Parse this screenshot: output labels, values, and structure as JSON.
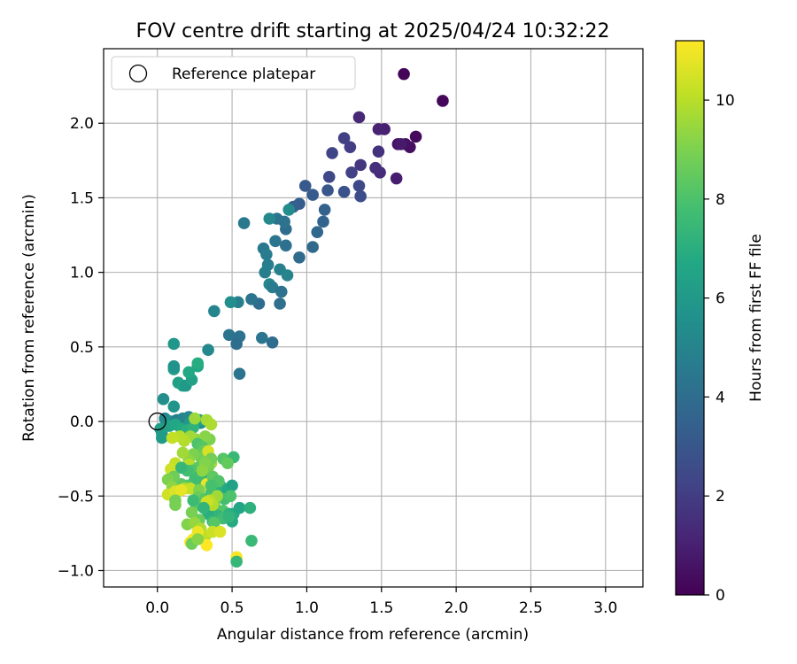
{
  "chart_data": {
    "type": "scatter",
    "title": "FOV centre drift starting at 2025/04/24 10:32:22",
    "xlabel": "Angular distance from reference (arcmin)",
    "ylabel": "Rotation from reference (arcmin)",
    "xlim": [
      -0.36,
      3.25
    ],
    "ylim": [
      -1.11,
      2.5
    ],
    "xticks": [
      0.0,
      0.5,
      1.0,
      1.5,
      2.0,
      2.5,
      3.0
    ],
    "yticks": [
      -1.0,
      -0.5,
      0.0,
      0.5,
      1.0,
      1.5,
      2.0
    ],
    "xtick_labels": [
      "0.0",
      "0.5",
      "1.0",
      "1.5",
      "2.0",
      "2.5",
      "3.0"
    ],
    "ytick_labels": [
      "−1.0",
      "−0.5",
      "0.0",
      "0.5",
      "1.0",
      "1.5",
      "2.0"
    ],
    "grid": true,
    "legend": {
      "position": "top-left",
      "entries": [
        "Reference platepar"
      ]
    },
    "reference_point": {
      "x": 0.0,
      "y": 0.0,
      "marker": "open-circle"
    },
    "colorbar": {
      "label": "Hours from first FF file",
      "range": [
        0,
        11.2
      ],
      "ticks": [
        0,
        2,
        4,
        6,
        8,
        10
      ],
      "tick_labels": [
        "0",
        "2",
        "4",
        "6",
        "8",
        "10"
      ],
      "colormap": "viridis"
    },
    "points": [
      [
        1.65,
        2.33,
        0.1
      ],
      [
        1.91,
        2.15,
        0.2
      ],
      [
        1.73,
        1.91,
        0.3
      ],
      [
        1.69,
        1.84,
        0.4
      ],
      [
        1.66,
        1.86,
        0.5
      ],
      [
        1.61,
        1.86,
        0.6
      ],
      [
        1.63,
        1.86,
        0.8
      ],
      [
        1.52,
        1.96,
        1.0
      ],
      [
        1.48,
        1.96,
        1.1
      ],
      [
        1.35,
        2.04,
        1.3
      ],
      [
        1.6,
        1.63,
        0.9
      ],
      [
        1.49,
        1.67,
        1.4
      ],
      [
        1.46,
        1.7,
        1.5
      ],
      [
        1.48,
        1.81,
        1.6
      ],
      [
        1.36,
        1.72,
        1.8
      ],
      [
        1.29,
        1.84,
        2.0
      ],
      [
        1.25,
        1.9,
        2.1
      ],
      [
        1.3,
        1.67,
        2.2
      ],
      [
        1.17,
        1.8,
        2.3
      ],
      [
        1.15,
        1.64,
        2.4
      ],
      [
        1.35,
        1.58,
        2.5
      ],
      [
        1.36,
        1.51,
        2.6
      ],
      [
        1.25,
        1.54,
        2.8
      ],
      [
        1.14,
        1.55,
        3.0
      ],
      [
        0.99,
        1.58,
        3.1
      ],
      [
        1.04,
        1.52,
        3.2
      ],
      [
        0.95,
        1.46,
        3.3
      ],
      [
        0.91,
        1.44,
        3.4
      ],
      [
        1.12,
        1.42,
        3.5
      ],
      [
        1.11,
        1.34,
        3.6
      ],
      [
        1.07,
        1.27,
        3.7
      ],
      [
        1.04,
        1.17,
        3.8
      ],
      [
        0.95,
        1.1,
        3.9
      ],
      [
        0.86,
        1.29,
        4.0
      ],
      [
        0.86,
        1.18,
        4.1
      ],
      [
        0.85,
        1.34,
        4.2
      ],
      [
        0.8,
        1.36,
        4.3
      ],
      [
        0.79,
        1.21,
        4.4
      ],
      [
        0.71,
        1.16,
        4.5
      ],
      [
        0.73,
        1.12,
        4.6
      ],
      [
        0.74,
        1.05,
        4.7
      ],
      [
        0.72,
        1.0,
        4.8
      ],
      [
        0.82,
        1.02,
        4.9
      ],
      [
        0.87,
        0.98,
        5.0
      ],
      [
        0.75,
        0.92,
        5.1
      ],
      [
        0.77,
        0.9,
        4.6
      ],
      [
        0.83,
        0.87,
        4.2
      ],
      [
        0.82,
        0.79,
        4.1
      ],
      [
        0.68,
        0.79,
        4.0
      ],
      [
        0.63,
        0.82,
        4.3
      ],
      [
        0.58,
        1.33,
        4.5
      ],
      [
        0.75,
        1.36,
        5.2
      ],
      [
        0.88,
        1.42,
        5.4
      ],
      [
        0.77,
        0.53,
        4.0
      ],
      [
        0.7,
        0.56,
        4.4
      ],
      [
        0.55,
        0.57,
        4.2
      ],
      [
        0.53,
        0.52,
        4.0
      ],
      [
        0.48,
        0.58,
        4.3
      ],
      [
        0.54,
        0.8,
        4.8
      ],
      [
        0.49,
        0.8,
        5.5
      ],
      [
        0.55,
        0.32,
        4.3
      ],
      [
        0.38,
        0.74,
        5.0
      ],
      [
        0.34,
        0.48,
        5.2
      ],
      [
        0.27,
        0.37,
        6.6
      ],
      [
        0.27,
        0.39,
        6.9
      ],
      [
        0.11,
        0.52,
        5.9
      ],
      [
        0.11,
        0.35,
        6.1
      ],
      [
        0.11,
        0.37,
        5.7
      ],
      [
        0.14,
        0.26,
        6.3
      ],
      [
        0.17,
        0.24,
        6.5
      ],
      [
        0.19,
        0.24,
        6.0
      ],
      [
        0.23,
        0.28,
        6.4
      ],
      [
        0.21,
        0.33,
        6.7
      ],
      [
        0.04,
        0.15,
        5.5
      ],
      [
        0.11,
        0.1,
        5.8
      ],
      [
        0.05,
        0.02,
        5.1
      ],
      [
        0.06,
        0.01,
        5.3
      ],
      [
        0.09,
        0.0,
        5.6
      ],
      [
        0.13,
        0.01,
        4.8
      ],
      [
        0.17,
        0.02,
        5.0
      ],
      [
        0.21,
        0.03,
        5.2
      ],
      [
        0.25,
        0.0,
        5.4
      ],
      [
        0.29,
        -0.01,
        5.6
      ],
      [
        0.22,
        -0.01,
        6.0
      ],
      [
        0.28,
        0.01,
        6.5
      ],
      [
        0.02,
        -0.05,
        6.2
      ],
      [
        0.03,
        -0.08,
        6.3
      ],
      [
        0.03,
        -0.11,
        6.1
      ],
      [
        0.08,
        -0.03,
        6.4
      ],
      [
        0.12,
        -0.02,
        6.6
      ],
      [
        0.16,
        -0.05,
        6.8
      ],
      [
        0.2,
        -0.06,
        7.0
      ],
      [
        0.24,
        -0.04,
        7.2
      ],
      [
        0.25,
        0.02,
        9.5
      ],
      [
        0.33,
        0.01,
        9.7
      ],
      [
        0.36,
        -0.02,
        9.8
      ],
      [
        0.35,
        -0.12,
        9.0
      ],
      [
        0.32,
        -0.1,
        9.2
      ],
      [
        0.26,
        -0.12,
        9.4
      ],
      [
        0.22,
        -0.1,
        9.6
      ],
      [
        0.18,
        -0.13,
        9.9
      ],
      [
        0.15,
        -0.1,
        10.0
      ],
      [
        0.1,
        -0.11,
        10.2
      ],
      [
        0.27,
        -0.15,
        8.0
      ],
      [
        0.3,
        -0.17,
        8.2
      ],
      [
        0.31,
        -0.2,
        8.5
      ],
      [
        0.29,
        -0.24,
        8.8
      ],
      [
        0.24,
        -0.22,
        9.0
      ],
      [
        0.21,
        -0.26,
        9.3
      ],
      [
        0.17,
        -0.21,
        9.6
      ],
      [
        0.21,
        -0.29,
        10.0
      ],
      [
        0.12,
        -0.28,
        10.2
      ],
      [
        0.09,
        -0.32,
        10.4
      ],
      [
        0.34,
        -0.2,
        10.5
      ],
      [
        0.36,
        -0.28,
        9.6
      ],
      [
        0.34,
        -0.31,
        8.9
      ],
      [
        0.27,
        -0.31,
        8.4
      ],
      [
        0.23,
        -0.33,
        8.0
      ],
      [
        0.2,
        -0.33,
        7.8
      ],
      [
        0.16,
        -0.31,
        7.4
      ],
      [
        0.29,
        -0.36,
        7.0
      ],
      [
        0.33,
        -0.39,
        7.2
      ],
      [
        0.3,
        -0.41,
        7.6
      ],
      [
        0.25,
        -0.39,
        7.7
      ],
      [
        0.2,
        -0.43,
        8.1
      ],
      [
        0.16,
        -0.42,
        8.4
      ],
      [
        0.11,
        -0.37,
        8.7
      ],
      [
        0.07,
        -0.39,
        9.0
      ],
      [
        0.1,
        -0.44,
        9.3
      ],
      [
        0.14,
        -0.47,
        9.5
      ],
      [
        0.18,
        -0.45,
        9.8
      ],
      [
        0.22,
        -0.45,
        10.2
      ],
      [
        0.07,
        -0.49,
        10.4
      ],
      [
        0.12,
        -0.47,
        10.6
      ],
      [
        0.16,
        -0.46,
        10.8
      ],
      [
        0.33,
        -0.42,
        10.9
      ],
      [
        0.28,
        -0.46,
        9.0
      ],
      [
        0.27,
        -0.51,
        8.6
      ],
      [
        0.32,
        -0.52,
        8.2
      ],
      [
        0.36,
        -0.48,
        7.9
      ],
      [
        0.4,
        -0.46,
        7.5
      ],
      [
        0.43,
        -0.44,
        7.1
      ],
      [
        0.47,
        -0.46,
        6.8
      ],
      [
        0.5,
        -0.43,
        6.5
      ],
      [
        0.45,
        -0.52,
        7.8
      ],
      [
        0.49,
        -0.5,
        8.0
      ],
      [
        0.26,
        -0.56,
        8.3
      ],
      [
        0.24,
        -0.53,
        7.6
      ],
      [
        0.12,
        -0.53,
        8.8
      ],
      [
        0.12,
        -0.56,
        8.9
      ],
      [
        0.38,
        -0.56,
        8.7
      ],
      [
        0.41,
        -0.6,
        8.4
      ],
      [
        0.44,
        -0.6,
        8.1
      ],
      [
        0.36,
        -0.63,
        7.8
      ],
      [
        0.4,
        -0.63,
        7.3
      ],
      [
        0.34,
        -0.62,
        7.0
      ],
      [
        0.37,
        -0.67,
        7.4
      ],
      [
        0.44,
        -0.65,
        7.7
      ],
      [
        0.48,
        -0.62,
        7.2
      ],
      [
        0.51,
        -0.62,
        6.9
      ],
      [
        0.55,
        -0.58,
        6.6
      ],
      [
        0.62,
        -0.58,
        7.1
      ],
      [
        0.5,
        -0.67,
        6.8
      ],
      [
        0.48,
        -0.64,
        7.3
      ],
      [
        0.38,
        -0.68,
        8.2
      ],
      [
        0.28,
        -0.66,
        8.6
      ],
      [
        0.23,
        -0.61,
        8.9
      ],
      [
        0.2,
        -0.69,
        9.1
      ],
      [
        0.25,
        -0.68,
        9.4
      ],
      [
        0.29,
        -0.72,
        9.8
      ],
      [
        0.32,
        -0.77,
        10.1
      ],
      [
        0.37,
        -0.74,
        10.3
      ],
      [
        0.42,
        -0.74,
        10.6
      ],
      [
        0.27,
        -0.74,
        10.9
      ],
      [
        0.24,
        -0.79,
        11.0
      ],
      [
        0.22,
        -0.81,
        11.1
      ],
      [
        0.33,
        -0.83,
        11.2
      ],
      [
        0.53,
        -0.91,
        11.1
      ],
      [
        0.53,
        -0.94,
        7.4
      ],
      [
        0.63,
        -0.8,
        7.5
      ],
      [
        0.23,
        -0.82,
        8.7
      ],
      [
        0.27,
        -0.79,
        9.2
      ],
      [
        0.44,
        -0.25,
        8.2
      ],
      [
        0.51,
        -0.24,
        7.5
      ],
      [
        0.47,
        -0.28,
        8.5
      ],
      [
        0.36,
        -0.25,
        8.8
      ],
      [
        0.32,
        -0.28,
        9.1
      ],
      [
        0.3,
        -0.33,
        9.3
      ],
      [
        0.37,
        -0.37,
        8.4
      ],
      [
        0.41,
        -0.4,
        8.1
      ],
      [
        0.36,
        -0.43,
        7.9
      ],
      [
        0.4,
        -0.5,
        9.6
      ],
      [
        0.37,
        -0.56,
        9.9
      ],
      [
        0.35,
        -0.53,
        10.0
      ],
      [
        0.33,
        -0.54,
        10.3
      ],
      [
        0.31,
        -0.58,
        7.3
      ]
    ]
  }
}
